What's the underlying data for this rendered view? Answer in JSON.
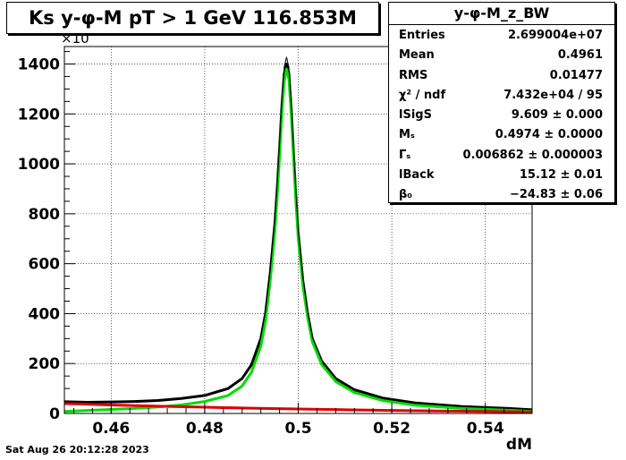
{
  "title": "Ks y-φ-M pT > 1 GeV  116.853M",
  "footer_date": "Sat Aug 26 20:12:28 2023",
  "stats": {
    "name": "y-φ-M_z_BW",
    "rows": [
      {
        "label": "Entries",
        "value": "2.699004e+07"
      },
      {
        "label": "Mean",
        "value": "0.4961"
      },
      {
        "label": "RMS",
        "value": "0.01477"
      },
      {
        "label": "χ² / ndf",
        "value": "7.432e+04 / 95"
      },
      {
        "label": "lSigS",
        "value": "9.609 ± 0.000"
      },
      {
        "label": "Mₛ",
        "value": "0.4974 ± 0.0000"
      },
      {
        "label": "Γₛ",
        "value": "0.006862 ± 0.000003"
      },
      {
        "label": "lBack",
        "value": "15.12 ± 0.01"
      },
      {
        "label": "β₀",
        "value": "−24.83 ± 0.06"
      }
    ]
  },
  "chart_data": {
    "type": "line",
    "xlabel": "dM",
    "ylabel": "",
    "y_multiplier_label": "×10",
    "xlim": [
      0.45,
      0.55
    ],
    "ylim": [
      0,
      1470
    ],
    "x_ticks": [
      "0.46",
      "0.48",
      "0.5",
      "0.52",
      "0.54"
    ],
    "y_ticks": [
      "0",
      "200",
      "400",
      "600",
      "800",
      "1000",
      "1200",
      "1400"
    ],
    "grid": true,
    "colors": {
      "histogram": "#000000",
      "total_fit": "#000000",
      "signal": "#00dd00",
      "background": "#dd0000"
    },
    "series": [
      {
        "values": [
          [
            0.45,
            47
          ],
          [
            0.455,
            45
          ],
          [
            0.46,
            46
          ],
          [
            0.465,
            48
          ],
          [
            0.47,
            52
          ],
          [
            0.475,
            60
          ],
          [
            0.48,
            72
          ],
          [
            0.485,
            100
          ],
          [
            0.488,
            140
          ],
          [
            0.49,
            195
          ],
          [
            0.492,
            300
          ],
          [
            0.493,
            400
          ],
          [
            0.494,
            560
          ],
          [
            0.495,
            760
          ],
          [
            0.4955,
            900
          ],
          [
            0.496,
            1060
          ],
          [
            0.4965,
            1230
          ],
          [
            0.497,
            1360
          ],
          [
            0.4975,
            1400
          ],
          [
            0.498,
            1360
          ],
          [
            0.4985,
            1220
          ],
          [
            0.499,
            1040
          ],
          [
            0.4995,
            870
          ],
          [
            0.5,
            720
          ],
          [
            0.501,
            530
          ],
          [
            0.502,
            400
          ],
          [
            0.503,
            300
          ],
          [
            0.505,
            210
          ],
          [
            0.508,
            140
          ],
          [
            0.512,
            95
          ],
          [
            0.518,
            62
          ],
          [
            0.525,
            42
          ],
          [
            0.535,
            28
          ],
          [
            0.545,
            20
          ],
          [
            0.55,
            15
          ]
        ]
      },
      {
        "values": [
          [
            0.45,
            8
          ],
          [
            0.455,
            12
          ],
          [
            0.46,
            16
          ],
          [
            0.465,
            20
          ],
          [
            0.47,
            26
          ],
          [
            0.475,
            34
          ],
          [
            0.48,
            48
          ],
          [
            0.485,
            72
          ],
          [
            0.488,
            110
          ],
          [
            0.49,
            165
          ],
          [
            0.492,
            270
          ],
          [
            0.493,
            370
          ],
          [
            0.494,
            530
          ],
          [
            0.495,
            730
          ],
          [
            0.4955,
            870
          ],
          [
            0.496,
            1030
          ],
          [
            0.4965,
            1200
          ],
          [
            0.497,
            1330
          ],
          [
            0.4975,
            1380
          ],
          [
            0.498,
            1340
          ],
          [
            0.4985,
            1200
          ],
          [
            0.499,
            1020
          ],
          [
            0.4995,
            850
          ],
          [
            0.5,
            700
          ],
          [
            0.501,
            510
          ],
          [
            0.502,
            385
          ],
          [
            0.503,
            288
          ],
          [
            0.505,
            196
          ],
          [
            0.508,
            128
          ],
          [
            0.512,
            84
          ],
          [
            0.518,
            52
          ],
          [
            0.525,
            33
          ],
          [
            0.535,
            20
          ],
          [
            0.545,
            13
          ],
          [
            0.55,
            10
          ]
        ]
      },
      {
        "values": [
          [
            0.45,
            40
          ],
          [
            0.46,
            34
          ],
          [
            0.47,
            29
          ],
          [
            0.48,
            25
          ],
          [
            0.49,
            21
          ],
          [
            0.5,
            18
          ],
          [
            0.51,
            15
          ],
          [
            0.52,
            12
          ],
          [
            0.53,
            10
          ],
          [
            0.54,
            8
          ],
          [
            0.55,
            6
          ]
        ]
      }
    ]
  }
}
